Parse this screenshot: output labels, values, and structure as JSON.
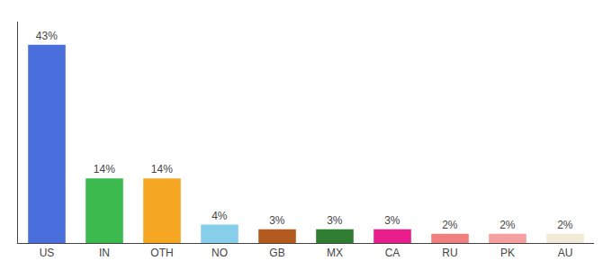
{
  "chart_data": {
    "type": "bar",
    "categories": [
      "US",
      "IN",
      "OTH",
      "NO",
      "GB",
      "MX",
      "CA",
      "RU",
      "PK",
      "AU"
    ],
    "values": [
      43,
      14,
      14,
      4,
      3,
      3,
      3,
      2,
      2,
      2
    ],
    "value_labels": [
      "43%",
      "14%",
      "14%",
      "4%",
      "3%",
      "3%",
      "3%",
      "2%",
      "2%",
      "2%"
    ],
    "colors": [
      "#4a6fdc",
      "#3dba4e",
      "#f5a623",
      "#87ceeb",
      "#b35a1f",
      "#2e7d32",
      "#e91e8c",
      "#f08080",
      "#f4a0a0",
      "#f0ead6"
    ],
    "data_labels": true,
    "ylim": [
      0,
      48
    ],
    "grid": false,
    "tick_labels": "x"
  }
}
